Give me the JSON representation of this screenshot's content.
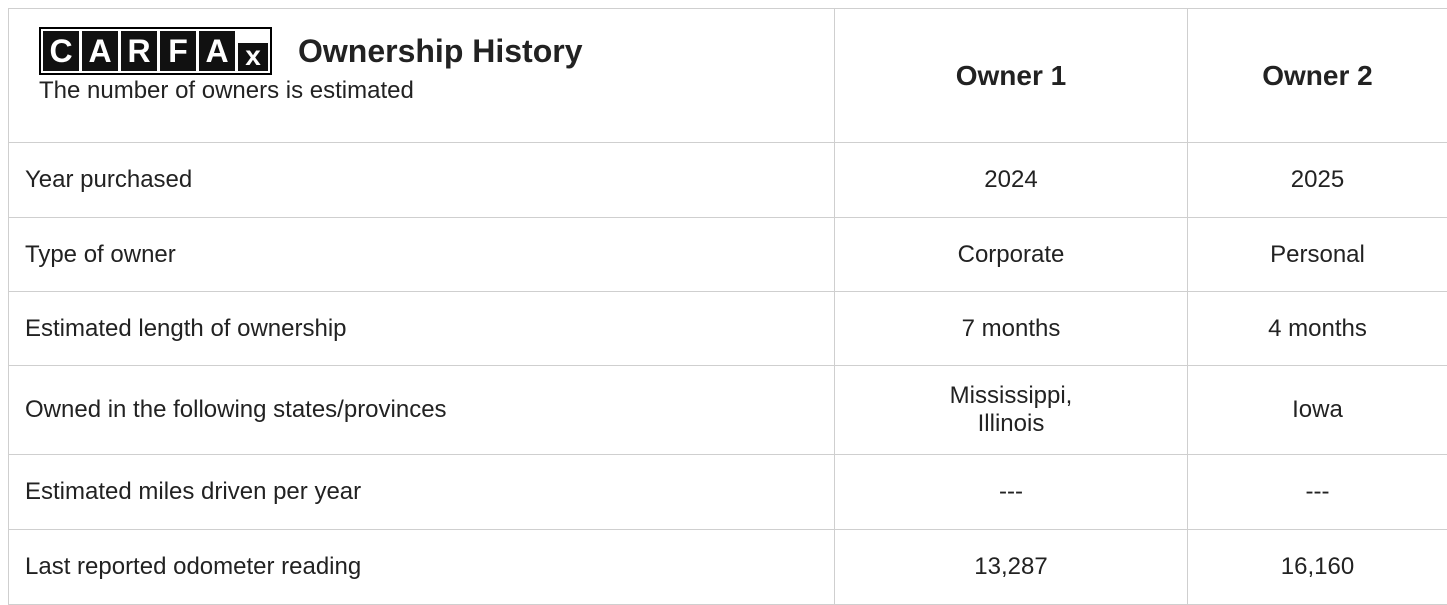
{
  "header": {
    "logo": [
      "C",
      "A",
      "R",
      "F",
      "A",
      "x"
    ],
    "title": "Ownership History",
    "subtitle": "The number of owners is estimated"
  },
  "table": {
    "columns": [
      "Owner 1",
      "Owner 2"
    ],
    "rows": [
      [
        "Year purchased",
        "2024",
        "2025"
      ],
      [
        "Type of owner",
        "Corporate",
        "Personal"
      ],
      [
        "Estimated length of ownership",
        "7 months",
        "4 months"
      ],
      [
        "Owned in the following states/provinces",
        "Mississippi, Illinois",
        "Iowa"
      ],
      [
        "Estimated miles driven per year",
        "---",
        "---"
      ],
      [
        "Last reported odometer reading",
        "13,287",
        "16,160"
      ]
    ]
  }
}
